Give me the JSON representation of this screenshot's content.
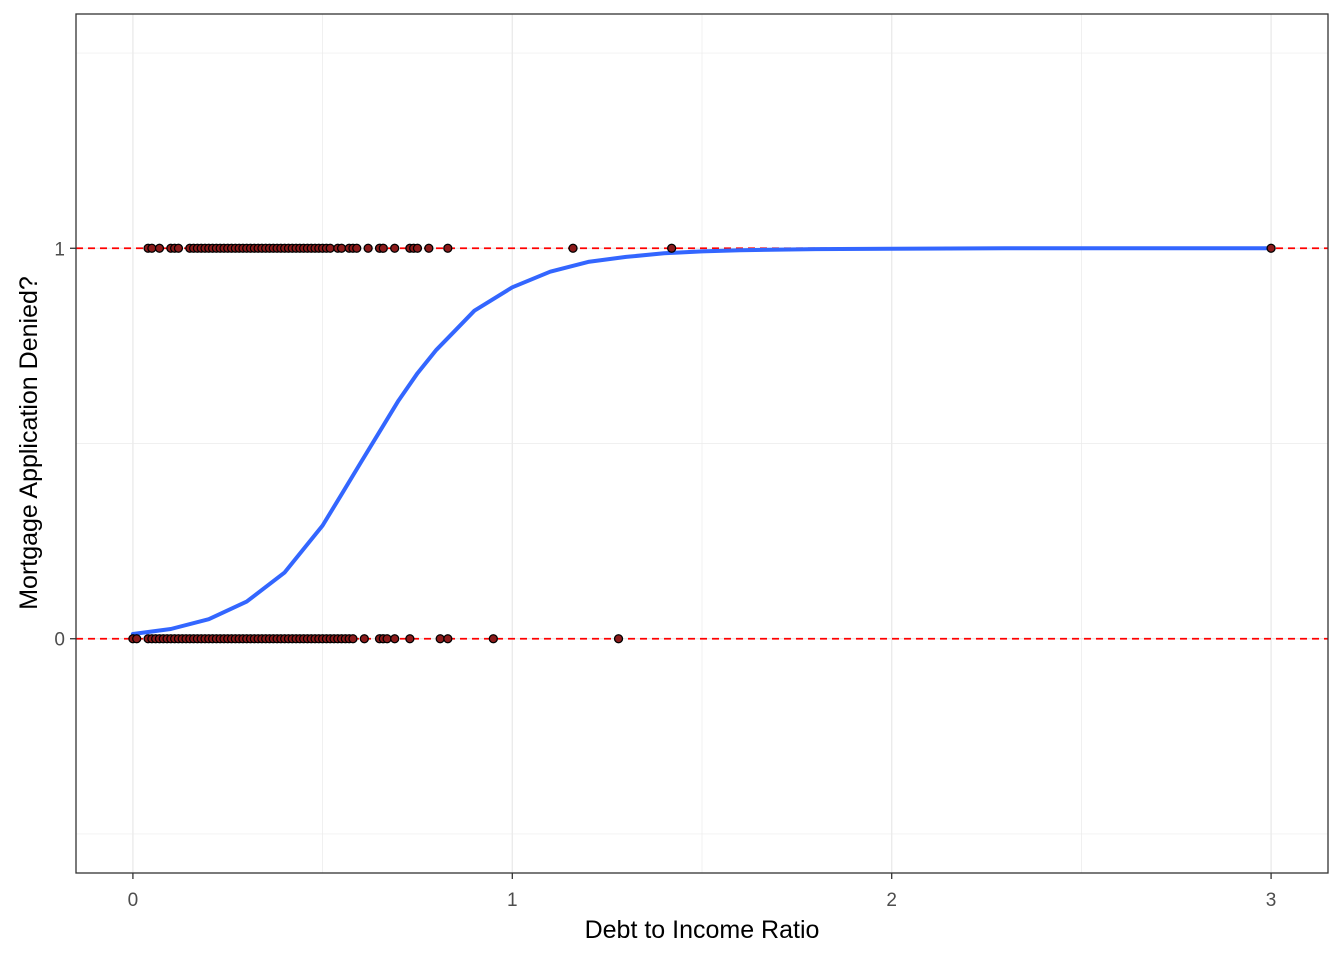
{
  "chart_data": {
    "type": "scatter",
    "title": "",
    "xlabel": "Debt to Income Ratio",
    "ylabel": "Mortgage Application Denied?",
    "xlim": [
      -0.15,
      3.15
    ],
    "ylim": [
      -0.6,
      1.6
    ],
    "x_ticks": [
      0,
      1,
      2,
      3
    ],
    "x_tick_labels": [
      "0",
      "1",
      "2",
      "3"
    ],
    "y_ticks": [
      0,
      1
    ],
    "y_tick_labels": [
      "0",
      "1"
    ],
    "grid": true,
    "legend": "none",
    "reference_lines": [
      {
        "axis": "y",
        "value": 0,
        "style": "dashed",
        "color": "#ff0000"
      },
      {
        "axis": "y",
        "value": 1,
        "style": "dashed",
        "color": "#ff0000"
      }
    ],
    "series": [
      {
        "kind": "points",
        "y": 1,
        "x": [
          0.04,
          0.05,
          0.07,
          0.1,
          0.11,
          0.12,
          0.15,
          0.16,
          0.17,
          0.18,
          0.19,
          0.2,
          0.21,
          0.22,
          0.23,
          0.24,
          0.25,
          0.26,
          0.27,
          0.28,
          0.29,
          0.3,
          0.31,
          0.32,
          0.33,
          0.34,
          0.35,
          0.36,
          0.37,
          0.38,
          0.39,
          0.4,
          0.41,
          0.42,
          0.43,
          0.44,
          0.45,
          0.46,
          0.47,
          0.48,
          0.49,
          0.5,
          0.51,
          0.52,
          0.54,
          0.55,
          0.57,
          0.58,
          0.59,
          0.62,
          0.65,
          0.66,
          0.69,
          0.73,
          0.74,
          0.75,
          0.78,
          0.83,
          1.16,
          1.42,
          3.0
        ],
        "color": "#000000",
        "fill": "#8b1a1a"
      },
      {
        "kind": "points",
        "y": 0,
        "x": [
          0.0,
          0.01,
          0.04,
          0.05,
          0.06,
          0.07,
          0.08,
          0.09,
          0.1,
          0.11,
          0.12,
          0.13,
          0.14,
          0.15,
          0.16,
          0.17,
          0.18,
          0.19,
          0.2,
          0.21,
          0.22,
          0.23,
          0.24,
          0.25,
          0.26,
          0.27,
          0.28,
          0.29,
          0.3,
          0.31,
          0.32,
          0.33,
          0.34,
          0.35,
          0.36,
          0.37,
          0.38,
          0.39,
          0.4,
          0.41,
          0.42,
          0.43,
          0.44,
          0.45,
          0.46,
          0.47,
          0.48,
          0.49,
          0.5,
          0.51,
          0.52,
          0.53,
          0.54,
          0.55,
          0.56,
          0.57,
          0.58,
          0.61,
          0.65,
          0.66,
          0.67,
          0.69,
          0.73,
          0.81,
          0.83,
          0.95,
          1.28
        ],
        "color": "#000000",
        "fill": "#8b1a1a"
      },
      {
        "kind": "line",
        "x": [
          0.0,
          0.1,
          0.2,
          0.3,
          0.4,
          0.5,
          0.55,
          0.6,
          0.65,
          0.7,
          0.75,
          0.8,
          0.85,
          0.9,
          1.0,
          1.1,
          1.2,
          1.3,
          1.4,
          1.5,
          1.6,
          1.8,
          2.0,
          2.3,
          2.6,
          3.0
        ],
        "y": [
          0.012,
          0.025,
          0.05,
          0.095,
          0.17,
          0.29,
          0.37,
          0.45,
          0.53,
          0.61,
          0.68,
          0.74,
          0.79,
          0.84,
          0.9,
          0.94,
          0.965,
          0.978,
          0.987,
          0.992,
          0.995,
          0.998,
          0.999,
          1.0,
          1.0,
          1.0
        ],
        "color": "#3366ff"
      }
    ]
  }
}
